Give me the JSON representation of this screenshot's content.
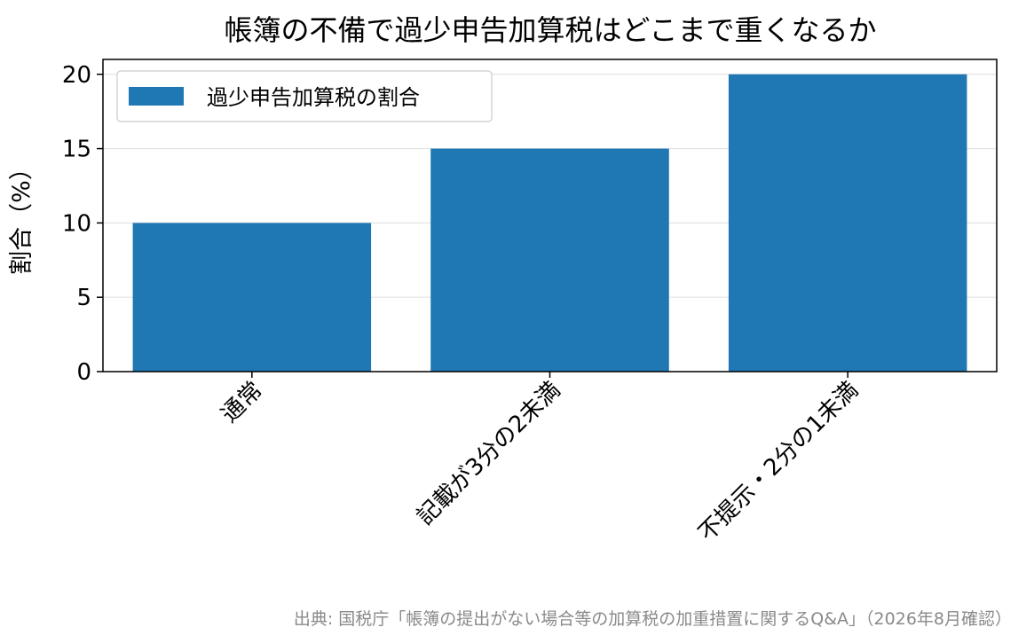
{
  "chart_data": {
    "type": "bar",
    "title": "帳簿の不備で過少申告加算税はどこまで重くなるか",
    "ylabel": "割合（%）",
    "xlabel": "",
    "categories": [
      "通常",
      "記載が3分の2未満",
      "不提示・2分の1未満"
    ],
    "series": [
      {
        "name": "過少申告加算税の割合",
        "values": [
          10,
          15,
          20
        ],
        "color": "#1f77b4"
      }
    ],
    "ylim": [
      0,
      21
    ],
    "yticks": [
      0,
      5,
      10,
      15,
      20
    ],
    "grid": true,
    "legend_position": "top-left",
    "source": "出典: 国税庁「帳簿の提出がない場合等の加算税の加重措置に関するQ&A」（2026年8月確認）"
  }
}
